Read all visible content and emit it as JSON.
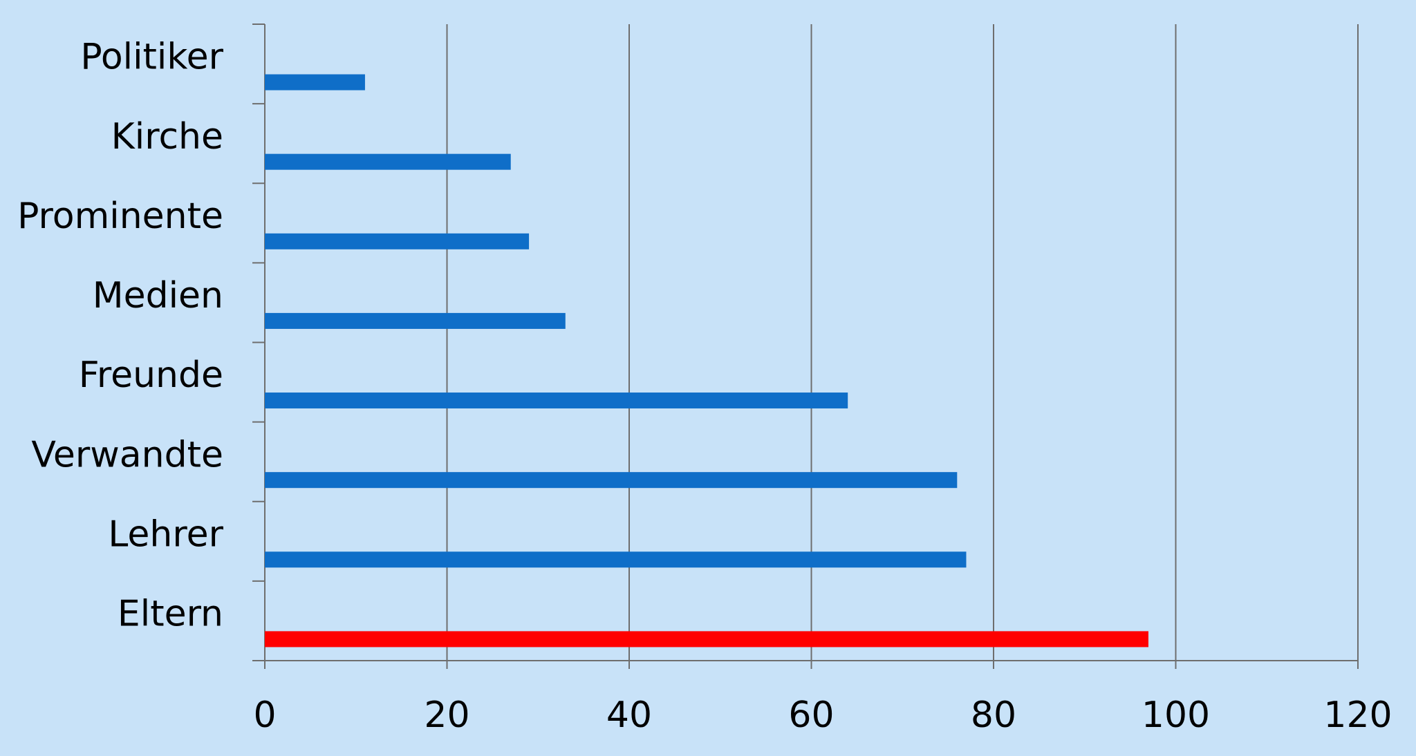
{
  "chart_data": {
    "type": "bar",
    "orientation": "horizontal",
    "categories": [
      "Politiker",
      "Kirche",
      "Prominente",
      "Medien",
      "Freunde",
      "Verwandte",
      "Lehrer",
      "Eltern"
    ],
    "values": [
      11,
      27,
      29,
      33,
      64,
      76,
      77,
      97
    ],
    "colors": [
      "#0f6ec8",
      "#0f6ec8",
      "#0f6ec8",
      "#0f6ec8",
      "#0f6ec8",
      "#0f6ec8",
      "#0f6ec8",
      "#ff0000"
    ],
    "xlim": [
      0,
      120
    ],
    "xticks": [
      0,
      20,
      40,
      60,
      80,
      100,
      120
    ],
    "grid": true
  }
}
